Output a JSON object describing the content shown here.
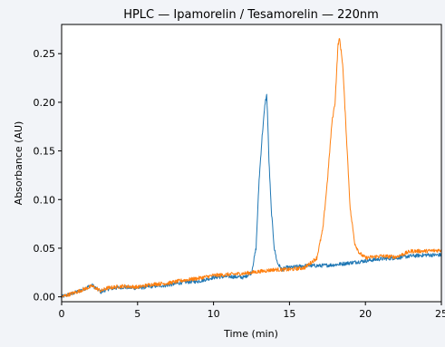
{
  "chart_data": {
    "type": "line",
    "title": "HPLC — Ipamorelin / Tesamorelin — 220nm",
    "xlabel": "Time (min)",
    "ylabel": "Absorbance (AU)",
    "xlim": [
      0,
      25
    ],
    "ylim": [
      -0.005,
      0.28
    ],
    "xticks": [
      0,
      5,
      10,
      15,
      20,
      25
    ],
    "yticks": [
      0.0,
      0.05,
      0.1,
      0.15,
      0.2,
      0.25
    ],
    "xtick_labels": [
      "0",
      "5",
      "10",
      "15",
      "20",
      "25"
    ],
    "ytick_labels": [
      "0.00",
      "0.05",
      "0.10",
      "0.15",
      "0.20",
      "0.25"
    ],
    "grid": false,
    "legend": "none",
    "series": [
      {
        "color": "#1f77b4",
        "x": [
          0,
          1,
          2,
          2.6,
          3,
          4,
          5,
          6,
          7,
          8,
          9,
          10,
          11,
          12,
          12.5,
          12.8,
          13.0,
          13.2,
          13.4,
          13.5,
          13.55,
          13.65,
          13.8,
          14.0,
          14.2,
          14.5,
          14.8,
          15,
          16,
          17,
          18,
          19,
          20,
          21,
          22,
          23,
          24,
          25
        ],
        "y": [
          0.0,
          0.005,
          0.012,
          0.005,
          0.008,
          0.01,
          0.009,
          0.011,
          0.012,
          0.015,
          0.016,
          0.02,
          0.021,
          0.02,
          0.025,
          0.05,
          0.12,
          0.165,
          0.2,
          0.207,
          0.19,
          0.14,
          0.09,
          0.05,
          0.035,
          0.028,
          0.03,
          0.03,
          0.032,
          0.032,
          0.033,
          0.035,
          0.037,
          0.039,
          0.04,
          0.042,
          0.043,
          0.043
        ]
      },
      {
        "color": "#ff7f0e",
        "x": [
          0,
          1,
          2,
          2.6,
          3,
          4,
          5,
          6,
          7,
          8,
          9,
          10,
          11,
          12,
          13,
          14,
          15,
          16,
          16.8,
          17.2,
          17.5,
          17.8,
          18.0,
          18.2,
          18.3,
          18.5,
          18.8,
          19.0,
          19.3,
          19.6,
          20,
          21,
          22,
          23,
          24,
          25
        ],
        "y": [
          0.0,
          0.005,
          0.011,
          0.006,
          0.009,
          0.011,
          0.01,
          0.013,
          0.014,
          0.017,
          0.019,
          0.022,
          0.023,
          0.024,
          0.026,
          0.028,
          0.028,
          0.03,
          0.04,
          0.07,
          0.12,
          0.18,
          0.2,
          0.26,
          0.265,
          0.24,
          0.15,
          0.09,
          0.055,
          0.045,
          0.04,
          0.042,
          0.041,
          0.047,
          0.047,
          0.048
        ]
      }
    ]
  }
}
